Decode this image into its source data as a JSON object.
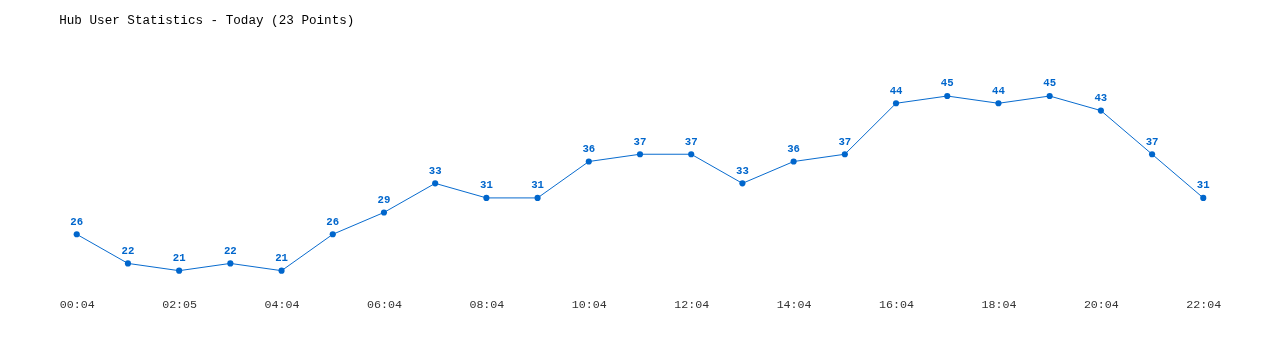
{
  "chart_data": {
    "type": "line",
    "title": "Hub User Statistics - Today (23 Points)",
    "categories": [
      "00:04",
      null,
      "02:05",
      null,
      "04:04",
      null,
      "06:04",
      null,
      "08:04",
      null,
      "10:04",
      null,
      "12:04",
      null,
      "14:04",
      null,
      "16:04",
      null,
      "18:04",
      null,
      "20:04",
      null,
      "22:04"
    ],
    "series": [
      {
        "color": "#0066cc",
        "values": [
          26,
          22,
          21,
          22,
          21,
          26,
          29,
          33,
          31,
          31,
          36,
          37,
          37,
          33,
          36,
          37,
          44,
          45,
          44,
          45,
          43,
          37,
          31
        ]
      }
    ],
    "data_labels": true,
    "marker": "circle",
    "line_style": "solid",
    "tick_labels": "x"
  }
}
